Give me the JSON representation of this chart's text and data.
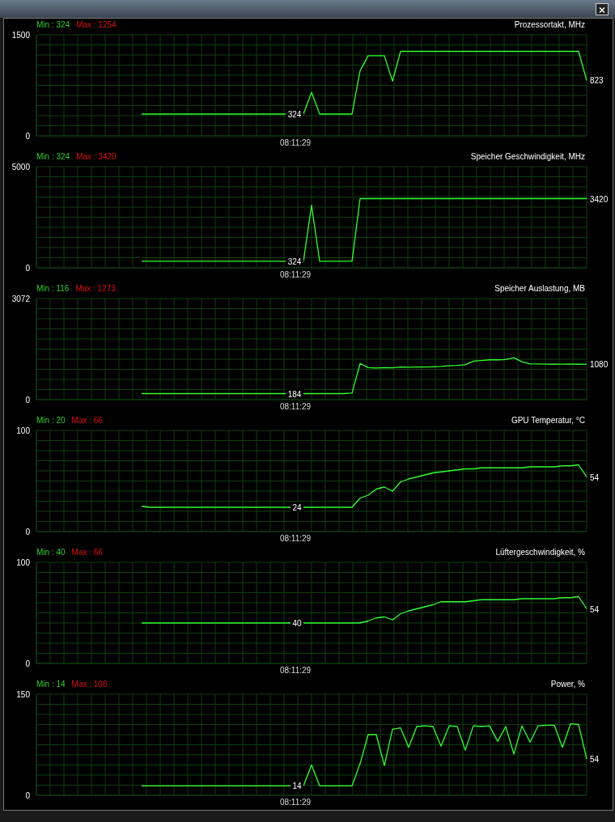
{
  "chart_data": [
    {
      "type": "line",
      "title": "Prozessortakt, MHz",
      "annotations": [
        "Min : 324",
        "Max : 1254"
      ],
      "xlabel": "08:11:29",
      "color": "#33ff33",
      "grid": true,
      "tick_labels": "y",
      "ylim": [
        0,
        1500
      ],
      "yticks": [
        0,
        1500
      ],
      "categories": [
        null,
        null,
        null,
        null,
        null,
        null,
        null,
        null,
        null,
        null,
        null,
        null,
        null,
        null,
        null,
        null,
        null,
        null,
        null,
        null,
        null,
        null,
        null,
        null,
        null,
        null,
        null,
        null,
        null,
        null,
        null,
        null,
        null,
        null,
        null,
        null,
        null,
        null,
        null,
        null,
        null,
        null,
        null,
        null,
        null,
        null,
        null,
        null,
        null,
        null,
        null,
        null,
        null,
        null,
        null,
        null,
        null,
        null,
        null,
        null,
        null,
        null,
        null,
        null,
        null,
        null,
        null,
        null,
        null
      ],
      "values": [
        null,
        null,
        null,
        null,
        null,
        null,
        null,
        null,
        null,
        null,
        null,
        null,
        null,
        324,
        324,
        324,
        324,
        324,
        324,
        324,
        324,
        324,
        324,
        324,
        324,
        324,
        324,
        324,
        324,
        324,
        324,
        324,
        324,
        324,
        647,
        324,
        324,
        324,
        324,
        324,
        967,
        1190,
        1190,
        1190,
        812,
        1254,
        1254,
        1254,
        1254,
        1254,
        1254,
        1254,
        1254,
        1254,
        1254,
        1254,
        1254,
        1254,
        1254,
        1254,
        1254,
        1254,
        1254,
        1254,
        1254,
        1254,
        1254,
        1254,
        823
      ],
      "value_labels": [
        null,
        null,
        null,
        null,
        null,
        null,
        null,
        null,
        null,
        null,
        null,
        null,
        null,
        null,
        null,
        null,
        null,
        null,
        null,
        null,
        null,
        null,
        null,
        null,
        null,
        null,
        null,
        null,
        null,
        null,
        null,
        null,
        null,
        "324",
        null,
        null,
        null,
        null,
        null,
        null,
        null,
        null,
        null,
        null,
        null,
        null,
        null,
        null,
        null,
        null,
        null,
        null,
        null,
        null,
        null,
        null,
        null,
        null,
        null,
        null,
        null,
        null,
        null,
        null,
        null,
        null,
        null,
        null,
        "823"
      ]
    },
    {
      "type": "line",
      "title": "Speicher Geschwindigkeit, MHz",
      "annotations": [
        "Min : 324",
        "Max : 3420"
      ],
      "xlabel": "08:11:29",
      "color": "#33ff33",
      "grid": true,
      "tick_labels": "y",
      "ylim": [
        0,
        5000
      ],
      "yticks": [
        0,
        5000
      ],
      "categories": [
        null,
        null,
        null,
        null,
        null,
        null,
        null,
        null,
        null,
        null,
        null,
        null,
        null,
        null,
        null,
        null,
        null,
        null,
        null,
        null,
        null,
        null,
        null,
        null,
        null,
        null,
        null,
        null,
        null,
        null,
        null,
        null,
        null,
        null,
        null,
        null,
        null,
        null,
        null,
        null,
        null,
        null,
        null,
        null,
        null,
        null,
        null,
        null,
        null,
        null,
        null,
        null,
        null,
        null,
        null,
        null,
        null,
        null,
        null,
        null,
        null,
        null,
        null,
        null,
        null,
        null,
        null,
        null,
        null
      ],
      "values": [
        null,
        null,
        null,
        null,
        null,
        null,
        null,
        null,
        null,
        null,
        null,
        null,
        null,
        324,
        324,
        324,
        324,
        324,
        324,
        324,
        324,
        324,
        324,
        324,
        324,
        324,
        324,
        324,
        324,
        324,
        324,
        324,
        324,
        324,
        3090,
        324,
        324,
        324,
        324,
        324,
        3420,
        3420,
        3420,
        3420,
        3420,
        3420,
        3420,
        3420,
        3420,
        3420,
        3420,
        3420,
        3420,
        3420,
        3420,
        3420,
        3420,
        3420,
        3420,
        3420,
        3420,
        3420,
        3420,
        3420,
        3420,
        3420,
        3420,
        3420,
        3420
      ],
      "value_labels": [
        null,
        null,
        null,
        null,
        null,
        null,
        null,
        null,
        null,
        null,
        null,
        null,
        null,
        null,
        null,
        null,
        null,
        null,
        null,
        null,
        null,
        null,
        null,
        null,
        null,
        null,
        null,
        null,
        null,
        null,
        null,
        null,
        null,
        "324",
        null,
        null,
        null,
        null,
        null,
        null,
        null,
        null,
        null,
        null,
        null,
        null,
        null,
        null,
        null,
        null,
        null,
        null,
        null,
        null,
        null,
        null,
        null,
        null,
        null,
        null,
        null,
        null,
        null,
        null,
        null,
        null,
        null,
        null,
        "3420"
      ]
    },
    {
      "type": "line",
      "title": "Speicher Auslastung, MB",
      "annotations": [
        "Min : 116",
        "Max : 1273"
      ],
      "xlabel": "08:11:29",
      "color": "#33ff33",
      "grid": true,
      "tick_labels": "y",
      "ylim": [
        0,
        3072
      ],
      "yticks": [
        0,
        3072
      ],
      "categories": [
        null,
        null,
        null,
        null,
        null,
        null,
        null,
        null,
        null,
        null,
        null,
        null,
        null,
        null,
        null,
        null,
        null,
        null,
        null,
        null,
        null,
        null,
        null,
        null,
        null,
        null,
        null,
        null,
        null,
        null,
        null,
        null,
        null,
        null,
        null,
        null,
        null,
        null,
        null,
        null,
        null,
        null,
        null,
        null,
        null,
        null,
        null,
        null,
        null,
        null,
        null,
        null,
        null,
        null,
        null,
        null,
        null,
        null,
        null,
        null,
        null,
        null,
        null,
        null,
        null,
        null,
        null,
        null,
        null
      ],
      "values": [
        null,
        null,
        null,
        null,
        null,
        null,
        null,
        null,
        null,
        null,
        null,
        null,
        null,
        184,
        184,
        184,
        184,
        184,
        184,
        184,
        184,
        184,
        184,
        184,
        184,
        184,
        184,
        184,
        184,
        184,
        184,
        184,
        184,
        184,
        184,
        184,
        184,
        184,
        184,
        200,
        1100,
        975,
        960,
        975,
        970,
        990,
        985,
        990,
        990,
        1000,
        1010,
        1030,
        1040,
        1060,
        1170,
        1190,
        1210,
        1210,
        1220,
        1273,
        1150,
        1090,
        1085,
        1080,
        1075,
        1080,
        1085,
        1075,
        1080
      ],
      "value_labels": [
        null,
        null,
        null,
        null,
        null,
        null,
        null,
        null,
        null,
        null,
        null,
        null,
        null,
        null,
        null,
        null,
        null,
        null,
        null,
        null,
        null,
        null,
        null,
        null,
        null,
        null,
        null,
        null,
        null,
        null,
        null,
        null,
        null,
        "184",
        null,
        null,
        null,
        null,
        null,
        null,
        null,
        null,
        null,
        null,
        null,
        null,
        null,
        null,
        null,
        null,
        null,
        null,
        null,
        null,
        null,
        null,
        null,
        null,
        null,
        null,
        null,
        null,
        null,
        null,
        null,
        null,
        null,
        null,
        "1080"
      ]
    },
    {
      "type": "line",
      "title": "GPU Temperatur, °C",
      "annotations": [
        "Min : 20",
        "Max : 66"
      ],
      "xlabel": "08:11:29",
      "color": "#33ff33",
      "grid": true,
      "tick_labels": "y",
      "ylim": [
        0,
        100
      ],
      "yticks": [
        0,
        100
      ],
      "categories": [
        null,
        null,
        null,
        null,
        null,
        null,
        null,
        null,
        null,
        null,
        null,
        null,
        null,
        null,
        null,
        null,
        null,
        null,
        null,
        null,
        null,
        null,
        null,
        null,
        null,
        null,
        null,
        null,
        null,
        null,
        null,
        null,
        null,
        null,
        null,
        null,
        null,
        null,
        null,
        null,
        null,
        null,
        null,
        null,
        null,
        null,
        null,
        null,
        null,
        null,
        null,
        null,
        null,
        null,
        null,
        null,
        null,
        null,
        null,
        null,
        null,
        null,
        null,
        null,
        null,
        null,
        null,
        null,
        null
      ],
      "values": [
        null,
        null,
        null,
        null,
        null,
        null,
        null,
        null,
        null,
        null,
        null,
        null,
        null,
        25,
        24,
        24,
        24,
        24,
        24,
        24,
        24,
        24,
        24,
        24,
        24,
        24,
        24,
        24,
        24,
        24,
        24,
        24,
        24,
        24,
        24,
        24,
        24,
        24,
        24,
        24,
        33,
        36,
        42,
        44,
        40,
        49,
        52,
        54,
        56,
        58,
        59,
        60,
        61,
        62,
        62,
        63,
        63,
        63,
        63,
        63,
        63,
        64,
        64,
        64,
        64,
        65,
        65,
        66,
        54
      ],
      "value_labels": [
        null,
        null,
        null,
        null,
        null,
        null,
        null,
        null,
        null,
        null,
        null,
        null,
        null,
        null,
        null,
        null,
        null,
        null,
        null,
        null,
        null,
        null,
        null,
        null,
        null,
        null,
        null,
        null,
        null,
        null,
        null,
        null,
        null,
        "24",
        null,
        null,
        null,
        null,
        null,
        null,
        null,
        null,
        null,
        null,
        null,
        null,
        null,
        null,
        null,
        null,
        null,
        null,
        null,
        null,
        null,
        null,
        null,
        null,
        null,
        null,
        null,
        null,
        null,
        null,
        null,
        null,
        null,
        null,
        "54"
      ]
    },
    {
      "type": "line",
      "title": "Lüftergeschwindigkeit, %",
      "annotations": [
        "Min : 40",
        "Max : 66"
      ],
      "xlabel": "08:11:29",
      "color": "#33ff33",
      "grid": true,
      "tick_labels": "y",
      "ylim": [
        0,
        100
      ],
      "yticks": [
        0,
        100
      ],
      "categories": [
        null,
        null,
        null,
        null,
        null,
        null,
        null,
        null,
        null,
        null,
        null,
        null,
        null,
        null,
        null,
        null,
        null,
        null,
        null,
        null,
        null,
        null,
        null,
        null,
        null,
        null,
        null,
        null,
        null,
        null,
        null,
        null,
        null,
        null,
        null,
        null,
        null,
        null,
        null,
        null,
        null,
        null,
        null,
        null,
        null,
        null,
        null,
        null,
        null,
        null,
        null,
        null,
        null,
        null,
        null,
        null,
        null,
        null,
        null,
        null,
        null,
        null,
        null,
        null,
        null,
        null,
        null,
        null,
        null
      ],
      "values": [
        null,
        null,
        null,
        null,
        null,
        null,
        null,
        null,
        null,
        null,
        null,
        null,
        null,
        40,
        40,
        40,
        40,
        40,
        40,
        40,
        40,
        40,
        40,
        40,
        40,
        40,
        40,
        40,
        40,
        40,
        40,
        40,
        40,
        40,
        40,
        40,
        40,
        40,
        40,
        40,
        40,
        42,
        45,
        46,
        43,
        49,
        52,
        54,
        56,
        58,
        61,
        61,
        61,
        61,
        62,
        63,
        63,
        63,
        63,
        63,
        64,
        64,
        64,
        64,
        64,
        65,
        65,
        66,
        54
      ],
      "value_labels": [
        null,
        null,
        null,
        null,
        null,
        null,
        null,
        null,
        null,
        null,
        null,
        null,
        null,
        null,
        null,
        null,
        null,
        null,
        null,
        null,
        null,
        null,
        null,
        null,
        null,
        null,
        null,
        null,
        null,
        null,
        null,
        null,
        null,
        "40",
        null,
        null,
        null,
        null,
        null,
        null,
        null,
        null,
        null,
        null,
        null,
        null,
        null,
        null,
        null,
        null,
        null,
        null,
        null,
        null,
        null,
        null,
        null,
        null,
        null,
        null,
        null,
        null,
        null,
        null,
        null,
        null,
        null,
        null,
        "54"
      ]
    },
    {
      "type": "line",
      "title": "Power, %",
      "annotations": [
        "Min : 14",
        "Max : 106"
      ],
      "xlabel": "08:11:29",
      "color": "#33ff33",
      "grid": true,
      "tick_labels": "y",
      "ylim": [
        0,
        150
      ],
      "yticks": [
        0,
        150
      ],
      "categories": [
        null,
        null,
        null,
        null,
        null,
        null,
        null,
        null,
        null,
        null,
        null,
        null,
        null,
        null,
        null,
        null,
        null,
        null,
        null,
        null,
        null,
        null,
        null,
        null,
        null,
        null,
        null,
        null,
        null,
        null,
        null,
        null,
        null,
        null,
        null,
        null,
        null,
        null,
        null,
        null,
        null,
        null,
        null,
        null,
        null,
        null,
        null,
        null,
        null,
        null,
        null,
        null,
        null,
        null,
        null,
        null,
        null,
        null,
        null,
        null,
        null,
        null,
        null,
        null,
        null,
        null,
        null,
        null,
        null
      ],
      "values": [
        null,
        null,
        null,
        null,
        null,
        null,
        null,
        null,
        null,
        null,
        null,
        null,
        null,
        14,
        14,
        14,
        14,
        14,
        14,
        14,
        14,
        14,
        14,
        14,
        14,
        14,
        14,
        14,
        14,
        14,
        14,
        14,
        14,
        14,
        45,
        14,
        14,
        14,
        14,
        14,
        47,
        90,
        90,
        44,
        98,
        100,
        71,
        102,
        103,
        102,
        73,
        103,
        102,
        67,
        103,
        102,
        103,
        80,
        102,
        61,
        103,
        79,
        103,
        104,
        104,
        71,
        106,
        105,
        54
      ],
      "value_labels": [
        null,
        null,
        null,
        null,
        null,
        null,
        null,
        null,
        null,
        null,
        null,
        null,
        null,
        null,
        null,
        null,
        null,
        null,
        null,
        null,
        null,
        null,
        null,
        null,
        null,
        null,
        null,
        null,
        null,
        null,
        null,
        null,
        null,
        "14",
        null,
        null,
        null,
        null,
        null,
        null,
        null,
        null,
        null,
        null,
        null,
        null,
        null,
        null,
        null,
        null,
        null,
        null,
        null,
        null,
        null,
        null,
        null,
        null,
        null,
        null,
        null,
        null,
        null,
        null,
        null,
        null,
        null,
        null,
        "54"
      ]
    }
  ]
}
